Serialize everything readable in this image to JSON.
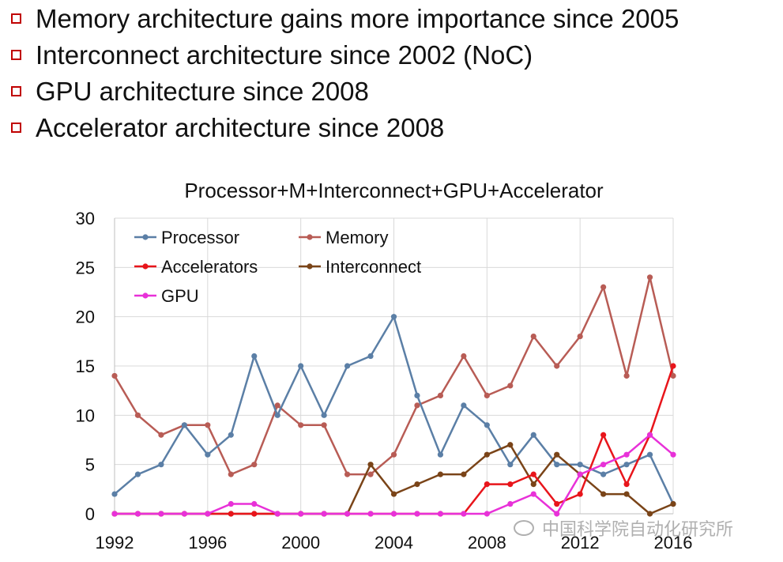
{
  "bullets": [
    "Memory architecture gains more importance since 2005",
    "Interconnect architecture since 2002 (NoC)",
    "GPU architecture since 2008",
    "Accelerator architecture since 2008"
  ],
  "watermark": "中国科学院自动化研究所",
  "chart_data": {
    "type": "line",
    "title": "Processor+M+Interconnect+GPU+Accelerator",
    "xlabel": "",
    "ylabel": "",
    "x": [
      1992,
      1993,
      1994,
      1995,
      1996,
      1997,
      1998,
      1999,
      2000,
      2001,
      2002,
      2003,
      2004,
      2005,
      2006,
      2007,
      2008,
      2009,
      2010,
      2011,
      2012,
      2013,
      2014,
      2015,
      2016
    ],
    "xticks": [
      "1992",
      "1996",
      "2000",
      "2004",
      "2008",
      "2012",
      "2016"
    ],
    "xtick_values": [
      1992,
      1996,
      2000,
      2004,
      2008,
      2012,
      2016
    ],
    "yticks": [
      "0",
      "5",
      "10",
      "15",
      "20",
      "25",
      "30"
    ],
    "ylim": [
      0,
      30
    ],
    "xlim": [
      1992,
      2016
    ],
    "legend_position": "top-left",
    "series": [
      {
        "name": "Processor",
        "color": "#5b7fa6",
        "values": [
          2,
          4,
          5,
          9,
          6,
          8,
          16,
          10,
          15,
          10,
          15,
          16,
          20,
          12,
          6,
          11,
          9,
          5,
          8,
          5,
          5,
          4,
          5,
          6,
          1
        ]
      },
      {
        "name": "Memory",
        "color": "#b85c55",
        "values": [
          14,
          10,
          8,
          9,
          9,
          4,
          5,
          11,
          9,
          9,
          4,
          4,
          6,
          11,
          12,
          16,
          12,
          13,
          18,
          15,
          18,
          23,
          14,
          24,
          14
        ]
      },
      {
        "name": "Accelerators",
        "color": "#e8151b",
        "values": [
          0,
          0,
          0,
          0,
          0,
          0,
          0,
          0,
          0,
          0,
          0,
          0,
          0,
          0,
          0,
          0,
          3,
          3,
          4,
          1,
          2,
          8,
          3,
          8,
          15
        ]
      },
      {
        "name": "Interconnect",
        "color": "#7a4418",
        "values": [
          0,
          0,
          0,
          0,
          0,
          0,
          0,
          0,
          0,
          0,
          0,
          5,
          2,
          3,
          4,
          4,
          6,
          7,
          3,
          6,
          4,
          2,
          2,
          0,
          1
        ]
      },
      {
        "name": "GPU",
        "color": "#e831d8",
        "values": [
          0,
          0,
          0,
          0,
          0,
          1,
          1,
          0,
          0,
          0,
          0,
          0,
          0,
          0,
          0,
          0,
          0,
          1,
          2,
          0,
          4,
          5,
          6,
          8,
          6
        ]
      }
    ]
  }
}
